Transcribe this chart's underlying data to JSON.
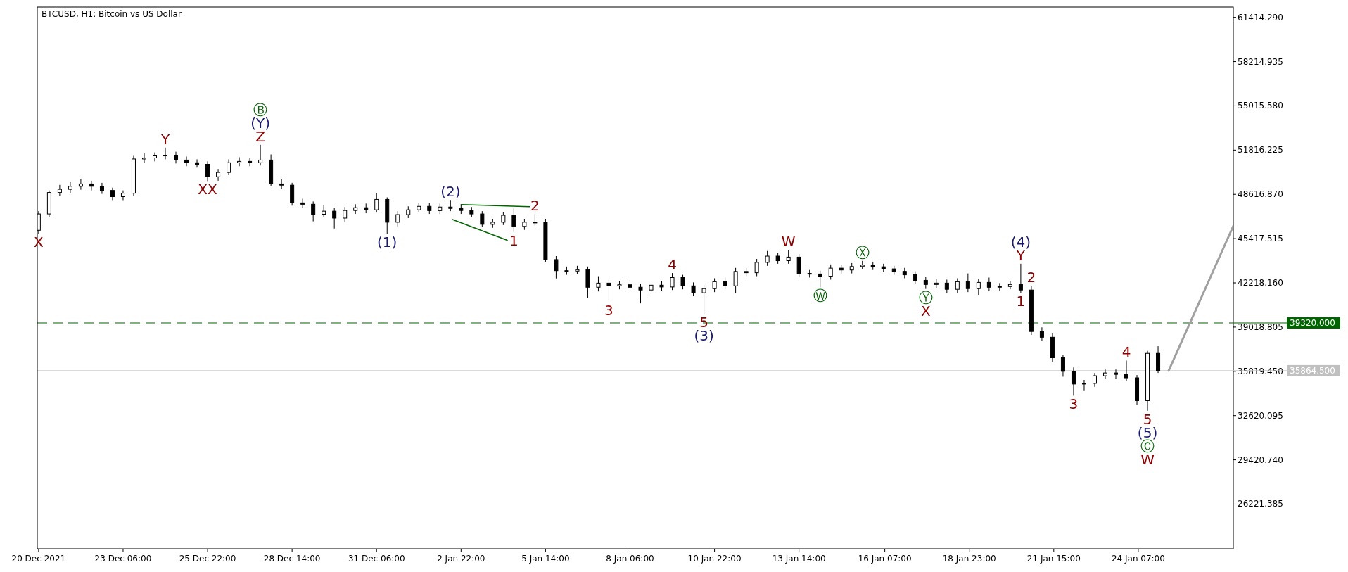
{
  "chart_data": {
    "type": "candlestick",
    "title": "BTCUSD, H1:  Bitcoin vs US Dollar",
    "color": "#000000",
    "x": [
      "2021-12-20T14:00",
      "2021-12-20T22:00",
      "2021-12-21T06:00",
      "2021-12-21T14:00",
      "2021-12-21T22:00",
      "2021-12-22T06:00",
      "2021-12-22T14:00",
      "2021-12-22T22:00",
      "2021-12-23T06:00",
      "2021-12-23T14:00",
      "2021-12-23T22:00",
      "2021-12-24T06:00",
      "2021-12-24T14:00",
      "2021-12-24T22:00",
      "2021-12-25T06:00",
      "2021-12-25T14:00",
      "2021-12-25T22:00",
      "2021-12-26T06:00",
      "2021-12-26T14:00",
      "2021-12-26T22:00",
      "2021-12-27T06:00",
      "2021-12-27T14:00",
      "2021-12-27T22:00",
      "2021-12-28T06:00",
      "2021-12-28T14:00",
      "2021-12-28T22:00",
      "2021-12-29T06:00",
      "2021-12-29T14:00",
      "2021-12-29T22:00",
      "2021-12-30T06:00",
      "2021-12-30T14:00",
      "2021-12-30T22:00",
      "2021-12-31T06:00",
      "2021-12-31T14:00",
      "2021-12-31T22:00",
      "2022-01-01T06:00",
      "2022-01-01T14:00",
      "2022-01-01T22:00",
      "2022-01-02T06:00",
      "2022-01-02T14:00",
      "2022-01-02T22:00",
      "2022-01-03T06:00",
      "2022-01-03T14:00",
      "2022-01-03T22:00",
      "2022-01-04T06:00",
      "2022-01-04T14:00",
      "2022-01-04T22:00",
      "2022-01-05T06:00",
      "2022-01-05T14:00",
      "2022-01-05T22:00",
      "2022-01-06T06:00",
      "2022-01-06T14:00",
      "2022-01-06T22:00",
      "2022-01-07T06:00",
      "2022-01-07T14:00",
      "2022-01-07T22:00",
      "2022-01-08T06:00",
      "2022-01-08T14:00",
      "2022-01-08T22:00",
      "2022-01-09T06:00",
      "2022-01-09T14:00",
      "2022-01-09T22:00",
      "2022-01-10T06:00",
      "2022-01-10T14:00",
      "2022-01-10T22:00",
      "2022-01-11T06:00",
      "2022-01-11T14:00",
      "2022-01-11T22:00",
      "2022-01-12T06:00",
      "2022-01-12T14:00",
      "2022-01-12T22:00",
      "2022-01-13T06:00",
      "2022-01-13T14:00",
      "2022-01-13T22:00",
      "2022-01-14T06:00",
      "2022-01-14T14:00",
      "2022-01-14T22:00",
      "2022-01-15T06:00",
      "2022-01-15T14:00",
      "2022-01-15T22:00",
      "2022-01-16T06:00",
      "2022-01-16T14:00",
      "2022-01-16T22:00",
      "2022-01-17T06:00",
      "2022-01-17T14:00",
      "2022-01-17T22:00",
      "2022-01-18T06:00",
      "2022-01-18T14:00",
      "2022-01-18T22:00",
      "2022-01-19T06:00",
      "2022-01-19T14:00",
      "2022-01-19T22:00",
      "2022-01-20T06:00",
      "2022-01-20T14:00",
      "2022-01-20T22:00",
      "2022-01-21T06:00",
      "2022-01-21T14:00",
      "2022-01-21T22:00",
      "2022-01-22T06:00",
      "2022-01-22T14:00",
      "2022-01-22T22:00",
      "2022-01-23T06:00",
      "2022-01-23T14:00",
      "2022-01-23T22:00",
      "2022-01-24T06:00",
      "2022-01-24T14:00",
      "2022-01-24T22:00"
    ],
    "ohlc": [
      [
        46020,
        47400,
        45760,
        47200
      ],
      [
        47200,
        48900,
        47000,
        48750
      ],
      [
        48750,
        49300,
        48500,
        48980
      ],
      [
        48980,
        49500,
        48700,
        49200
      ],
      [
        49200,
        49700,
        48950,
        49370
      ],
      [
        49370,
        49600,
        48900,
        49200
      ],
      [
        49200,
        49450,
        48650,
        48900
      ],
      [
        48900,
        49100,
        48200,
        48450
      ],
      [
        48450,
        48900,
        48200,
        48700
      ],
      [
        48700,
        51400,
        48500,
        51175
      ],
      [
        51175,
        51600,
        50900,
        51250
      ],
      [
        51250,
        51650,
        51000,
        51400
      ],
      [
        51400,
        52000,
        51150,
        51450
      ],
      [
        51450,
        51700,
        50850,
        51100
      ],
      [
        51100,
        51350,
        50650,
        50900
      ],
      [
        50900,
        51150,
        50550,
        50790
      ],
      [
        50790,
        51000,
        49575,
        49885
      ],
      [
        49885,
        50450,
        49600,
        50200
      ],
      [
        50200,
        51150,
        50000,
        50900
      ],
      [
        50900,
        51300,
        50650,
        51000
      ],
      [
        51000,
        51250,
        50650,
        50900
      ],
      [
        50900,
        52200,
        50700,
        51100
      ],
      [
        51100,
        51500,
        49200,
        49370
      ],
      [
        49370,
        49700,
        49000,
        49280
      ],
      [
        49280,
        49450,
        47800,
        48000
      ],
      [
        48000,
        48300,
        47650,
        47900
      ],
      [
        47900,
        48100,
        46665,
        47180
      ],
      [
        47180,
        47825,
        46950,
        47400
      ],
      [
        47400,
        47650,
        46150,
        46900
      ],
      [
        46900,
        47700,
        46600,
        47450
      ],
      [
        47450,
        47900,
        47200,
        47650
      ],
      [
        47650,
        47950,
        47250,
        47500
      ],
      [
        47500,
        48725,
        47300,
        48250
      ],
      [
        48250,
        48400,
        45760,
        46600
      ],
      [
        46600,
        47400,
        46300,
        47150
      ],
      [
        47150,
        47750,
        46900,
        47500
      ],
      [
        47500,
        48000,
        47300,
        47750
      ],
      [
        47750,
        48000,
        47200,
        47440
      ],
      [
        47440,
        47950,
        47200,
        47700
      ],
      [
        47700,
        48210,
        47400,
        47600
      ],
      [
        47600,
        47850,
        47200,
        47450
      ],
      [
        47450,
        47700,
        47000,
        47200
      ],
      [
        47200,
        47400,
        46250,
        46450
      ],
      [
        46450,
        46850,
        46200,
        46600
      ],
      [
        46600,
        47350,
        46400,
        47100
      ],
      [
        47100,
        47600,
        45900,
        46300
      ],
      [
        46300,
        46850,
        46050,
        46600
      ],
      [
        46600,
        47180,
        46350,
        46600
      ],
      [
        46600,
        46850,
        43700,
        43900
      ],
      [
        43900,
        44150,
        42540,
        43100
      ],
      [
        43100,
        43400,
        42800,
        43070
      ],
      [
        43070,
        43450,
        42850,
        43170
      ],
      [
        43170,
        43400,
        41120,
        41900
      ],
      [
        41900,
        42700,
        41600,
        42200
      ],
      [
        42200,
        42500,
        40860,
        42000
      ],
      [
        42000,
        42350,
        41750,
        42080
      ],
      [
        42080,
        42400,
        41650,
        41900
      ],
      [
        41900,
        42150,
        40735,
        41700
      ],
      [
        41700,
        42300,
        41450,
        42050
      ],
      [
        42050,
        42350,
        41650,
        41920
      ],
      [
        41920,
        42925,
        41700,
        42600
      ],
      [
        42600,
        42800,
        41750,
        42000
      ],
      [
        42000,
        42250,
        41250,
        41500
      ],
      [
        41500,
        42050,
        39960,
        41800
      ],
      [
        41800,
        42550,
        41550,
        42300
      ],
      [
        42300,
        42600,
        41750,
        42000
      ],
      [
        42000,
        43300,
        41500,
        43040
      ],
      [
        43040,
        43300,
        42700,
        42950
      ],
      [
        42950,
        43950,
        42700,
        43700
      ],
      [
        43700,
        44525,
        43450,
        44150
      ],
      [
        44150,
        44400,
        43600,
        43820
      ],
      [
        43820,
        44600,
        43600,
        44080
      ],
      [
        44080,
        44300,
        42650,
        42900
      ],
      [
        42900,
        43150,
        42600,
        42860
      ],
      [
        42860,
        43100,
        41895,
        42700
      ],
      [
        42700,
        43550,
        42450,
        43280
      ],
      [
        43280,
        43500,
        42900,
        43150
      ],
      [
        43150,
        43650,
        42900,
        43400
      ],
      [
        43400,
        43805,
        43200,
        43500
      ],
      [
        43500,
        43750,
        43150,
        43380
      ],
      [
        43380,
        43600,
        43000,
        43230
      ],
      [
        43230,
        43450,
        42800,
        43050
      ],
      [
        43050,
        43300,
        42550,
        42800
      ],
      [
        42800,
        43050,
        42150,
        42400
      ],
      [
        42400,
        42650,
        41780,
        42100
      ],
      [
        42100,
        42500,
        41850,
        42200
      ],
      [
        42200,
        42450,
        41500,
        41750
      ],
      [
        41750,
        42550,
        41500,
        42300
      ],
      [
        42300,
        42900,
        41550,
        41800
      ],
      [
        41800,
        42500,
        41300,
        42250
      ],
      [
        42250,
        42600,
        41650,
        41900
      ],
      [
        41900,
        42200,
        41650,
        41950
      ],
      [
        41950,
        42350,
        41750,
        42100
      ],
      [
        42100,
        43600,
        41500,
        41700
      ],
      [
        41700,
        42000,
        38450,
        38700
      ],
      [
        38700,
        39000,
        38000,
        38285
      ],
      [
        38285,
        38600,
        36500,
        36800
      ],
      [
        36800,
        37000,
        35430,
        35820
      ],
      [
        35820,
        36100,
        34060,
        34900
      ],
      [
        34900,
        35200,
        34400,
        34950
      ],
      [
        34950,
        35700,
        34700,
        35500
      ],
      [
        35500,
        35950,
        35250,
        35700
      ],
      [
        35700,
        35950,
        35300,
        35600
      ],
      [
        35600,
        36600,
        35100,
        35350
      ],
      [
        35350,
        35550,
        33400,
        33700
      ],
      [
        33700,
        37300,
        32970,
        37120
      ],
      [
        37120,
        37635,
        35700,
        35864.5
      ]
    ],
    "series": [
      {
        "type": "line",
        "color": "#a0a0a0",
        "x": [
          "2022-01-25T06:00",
          "2022-01-27T07:00"
        ],
        "values": [
          35864.5,
          46340
        ]
      },
      {
        "type": "line",
        "color": "#006400",
        "x": [
          "2022-01-02T22:00",
          "2022-01-05T02:00"
        ],
        "values": [
          47880,
          47730
        ]
      },
      {
        "type": "line",
        "color": "#006400",
        "x": [
          "2022-01-02T15:30",
          "2022-01-04T09:00"
        ],
        "values": [
          46800,
          45300
        ]
      }
    ],
    "xlim": [
      "2021-12-20T13:00",
      "2022-01-27T07:00"
    ],
    "xticks": [
      {
        "value": "2021-12-20T14:00",
        "label": "20 Dec 2021"
      },
      {
        "value": "2021-12-23T06:00",
        "label": "23 Dec 06:00"
      },
      {
        "value": "2021-12-25T22:00",
        "label": "25 Dec 22:00"
      },
      {
        "value": "2021-12-28T14:00",
        "label": "28 Dec 14:00"
      },
      {
        "value": "2021-12-31T06:00",
        "label": "31 Dec 06:00"
      },
      {
        "value": "2022-01-02T22:00",
        "label": "2 Jan 22:00"
      },
      {
        "value": "2022-01-05T14:00",
        "label": "5 Jan 14:00"
      },
      {
        "value": "2022-01-08T06:00",
        "label": "8 Jan 06:00"
      },
      {
        "value": "2022-01-10T22:00",
        "label": "10 Jan 22:00"
      },
      {
        "value": "2022-01-13T14:00",
        "label": "13 Jan 14:00"
      },
      {
        "value": "2022-01-16T07:00",
        "label": "16 Jan 07:00"
      },
      {
        "value": "2022-01-18T23:00",
        "label": "18 Jan 23:00"
      },
      {
        "value": "2022-01-21T15:00",
        "label": "21 Jan 15:00"
      },
      {
        "value": "2022-01-24T07:00",
        "label": "24 Jan 07:00"
      }
    ],
    "ylim": [
      22990,
      62160
    ],
    "yticks": [
      {
        "value": 26221.385,
        "label": "26221.385"
      },
      {
        "value": 29420.74,
        "label": "29420.740"
      },
      {
        "value": 32620.095,
        "label": "32620.095"
      },
      {
        "value": 35819.45,
        "label": "35819.450"
      },
      {
        "value": 39018.805,
        "label": "39018.805"
      },
      {
        "value": 42218.16,
        "label": "42218.160"
      },
      {
        "value": 45417.515,
        "label": "45417.515"
      },
      {
        "value": 48616.87,
        "label": "48616.870"
      },
      {
        "value": 51816.225,
        "label": "51816.225"
      },
      {
        "value": 55015.58,
        "label": "55015.580"
      },
      {
        "value": 58214.935,
        "label": "58214.935"
      },
      {
        "value": 61414.29,
        "label": "61414.290"
      }
    ],
    "grid": false,
    "annotations": [
      {
        "text": "X",
        "x": "2021-12-20T14:00",
        "y": 45760
      },
      {
        "text": "Y",
        "x": "2021-12-24T14:00",
        "y": 52000
      },
      {
        "text": "XX",
        "x": "2021-12-25T22:00",
        "y": 49575
      },
      {
        "text": "Z",
        "x": "2021-12-27T14:00",
        "y": 52200
      },
      {
        "text": "(Y)",
        "x": "2021-12-27T14:00",
        "y": 52200
      },
      {
        "text": "Ⓑ",
        "x": "2021-12-27T14:00",
        "y": 52200
      },
      {
        "text": "(1)",
        "x": "2021-12-31T14:00",
        "y": 45760
      },
      {
        "text": "(2)",
        "x": "2022-01-02T14:00",
        "y": 48210
      },
      {
        "text": "1",
        "x": "2022-01-04T14:00",
        "y": 45900
      },
      {
        "text": "2",
        "x": "2022-01-05T06:00",
        "y": 47180
      },
      {
        "text": "3",
        "x": "2022-01-07T14:00",
        "y": 40860
      },
      {
        "text": "4",
        "x": "2022-01-09T14:00",
        "y": 42925
      },
      {
        "text": "5",
        "x": "2022-01-10T14:00",
        "y": 39960
      },
      {
        "text": "(3)",
        "x": "2022-01-10T14:00",
        "y": 39960
      },
      {
        "text": "W",
        "x": "2022-01-13T06:00",
        "y": 44600
      },
      {
        "text": "Ⓦ",
        "x": "2022-01-14T06:00",
        "y": 41895
      },
      {
        "text": "Ⓧ",
        "x": "2022-01-15T14:00",
        "y": 43805
      },
      {
        "text": "Ⓨ",
        "x": "2022-01-17T14:00",
        "y": 41780
      },
      {
        "text": "X",
        "x": "2022-01-17T14:00",
        "y": 41780
      },
      {
        "text": "Y",
        "x": "2022-01-20T14:00",
        "y": 43600
      },
      {
        "text": "(4)",
        "x": "2022-01-20T14:00",
        "y": 43600
      },
      {
        "text": "1",
        "x": "2022-01-20T14:00",
        "y": 41500
      },
      {
        "text": "2",
        "x": "2022-01-20T22:00",
        "y": 42000
      },
      {
        "text": "3",
        "x": "2022-01-22T06:00",
        "y": 34060
      },
      {
        "text": "4",
        "x": "2022-01-23T22:00",
        "y": 36600
      },
      {
        "text": "5",
        "x": "2022-01-24T14:00",
        "y": 32970
      },
      {
        "text": "(5)",
        "x": "2022-01-24T14:00",
        "y": 32970
      },
      {
        "text": "Ⓒ",
        "x": "2022-01-24T14:00",
        "y": 32970
      },
      {
        "text": "W",
        "x": "2022-01-24T14:00",
        "y": 32970
      }
    ],
    "ref_lines": [
      {
        "axis": "y",
        "value": 39320,
        "label": "39320.000",
        "color": "#006400",
        "line_style": "dashed"
      },
      {
        "axis": "y",
        "value": 35864.5,
        "label": "35864.500",
        "color": "#c0c0c0",
        "line_style": "solid"
      }
    ],
    "tick_labels": true
  }
}
